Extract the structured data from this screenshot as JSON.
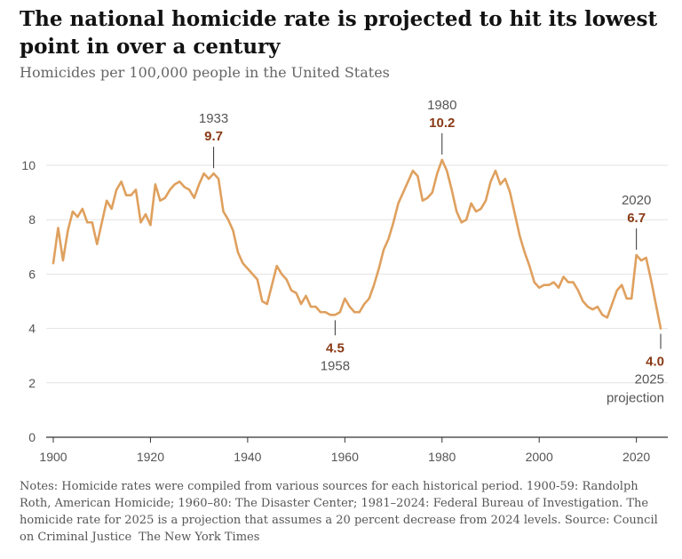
{
  "title": "The national homicide rate is projected to hit its lowest point in over a century",
  "subtitle": "Homicides per 100,000 people in the United States",
  "notes": "Notes: Homicide rates were compiled from various sources for each historical period. 1900-59: Randolph Roth, American Homicide; 1960–80: The Disaster Center; 1981–2024: Federal Bureau of Investigation. The homicide rate for 2025 is a projection that assumes a 20 percent decrease from 2024 levels.  Source: Council on Criminal Justice",
  "credit": "The New York Times",
  "colors": {
    "line": "#DFA05E",
    "annotation_value": "#8A3A16",
    "grid": "#E2E2E2",
    "axis": "#333333"
  },
  "chart_data": {
    "type": "line",
    "xlim": [
      1900,
      2025
    ],
    "ylim": [
      0,
      10
    ],
    "xticks": [
      1900,
      1920,
      1940,
      1960,
      1980,
      2000,
      2020
    ],
    "yticks": [
      0,
      2,
      4,
      6,
      8,
      10
    ],
    "grid": true,
    "series": [
      {
        "x": [
          1900,
          1901,
          1902,
          1903,
          1904,
          1905,
          1906,
          1907,
          1908,
          1909,
          1910,
          1911,
          1912,
          1913,
          1914,
          1915,
          1916,
          1917,
          1918,
          1919,
          1920,
          1921,
          1922,
          1923,
          1924,
          1925,
          1926,
          1927,
          1928,
          1929,
          1930,
          1931,
          1932,
          1933,
          1934,
          1935,
          1936,
          1937,
          1938,
          1939,
          1940,
          1941,
          1942,
          1943,
          1944,
          1945,
          1946,
          1947,
          1948,
          1949,
          1950,
          1951,
          1952,
          1953,
          1954,
          1955,
          1956,
          1957,
          1958,
          1959,
          1960,
          1961,
          1962,
          1963,
          1964,
          1965,
          1966,
          1967,
          1968,
          1969,
          1970,
          1971,
          1972,
          1973,
          1974,
          1975,
          1976,
          1977,
          1978,
          1979,
          1980,
          1981,
          1982,
          1983,
          1984,
          1985,
          1986,
          1987,
          1988,
          1989,
          1990,
          1991,
          1992,
          1993,
          1994,
          1995,
          1996,
          1997,
          1998,
          1999,
          2000,
          2001,
          2002,
          2003,
          2004,
          2005,
          2006,
          2007,
          2008,
          2009,
          2010,
          2011,
          2012,
          2013,
          2014,
          2015,
          2016,
          2017,
          2018,
          2019,
          2020,
          2021,
          2022,
          2023,
          2024,
          2025
        ],
        "y": [
          6.4,
          7.7,
          6.5,
          7.6,
          8.3,
          8.1,
          8.4,
          7.9,
          7.9,
          7.1,
          7.9,
          8.7,
          8.4,
          9.1,
          9.4,
          8.9,
          8.9,
          9.1,
          7.9,
          8.2,
          7.8,
          9.3,
          8.7,
          8.8,
          9.1,
          9.3,
          9.4,
          9.2,
          9.1,
          8.8,
          9.3,
          9.7,
          9.5,
          9.7,
          9.5,
          8.3,
          8.0,
          7.6,
          6.8,
          6.4,
          6.2,
          6.0,
          5.8,
          5.0,
          4.9,
          5.6,
          6.3,
          6.0,
          5.8,
          5.4,
          5.3,
          4.9,
          5.2,
          4.8,
          4.8,
          4.6,
          4.6,
          4.5,
          4.5,
          4.6,
          5.1,
          4.8,
          4.6,
          4.6,
          4.9,
          5.1,
          5.6,
          6.2,
          6.9,
          7.3,
          7.9,
          8.6,
          9.0,
          9.4,
          9.8,
          9.6,
          8.7,
          8.8,
          9.0,
          9.7,
          10.2,
          9.8,
          9.1,
          8.3,
          7.9,
          8.0,
          8.6,
          8.3,
          8.4,
          8.7,
          9.4,
          9.8,
          9.3,
          9.5,
          9.0,
          8.2,
          7.4,
          6.8,
          6.3,
          5.7,
          5.5,
          5.6,
          5.6,
          5.7,
          5.5,
          5.9,
          5.7,
          5.7,
          5.4,
          5.0,
          4.8,
          4.7,
          4.8,
          4.5,
          4.4,
          4.9,
          5.4,
          5.6,
          5.1,
          5.1,
          6.7,
          6.5,
          6.6,
          5.8,
          4.9,
          4.0
        ]
      }
    ],
    "annotations": [
      {
        "year": "1933",
        "value": "9.7",
        "x": 1933,
        "y": 9.7,
        "position": "above"
      },
      {
        "year": "1958",
        "value": "4.5",
        "x": 1958,
        "y": 4.5,
        "position": "below"
      },
      {
        "year": "1980",
        "value": "10.2",
        "x": 1980,
        "y": 10.2,
        "position": "above"
      },
      {
        "year": "2020",
        "value": "6.7",
        "x": 2020,
        "y": 6.7,
        "position": "above"
      },
      {
        "year": "2025",
        "value": "4.0",
        "x": 2025,
        "y": 4.0,
        "position": "below",
        "note": "projection"
      }
    ]
  }
}
